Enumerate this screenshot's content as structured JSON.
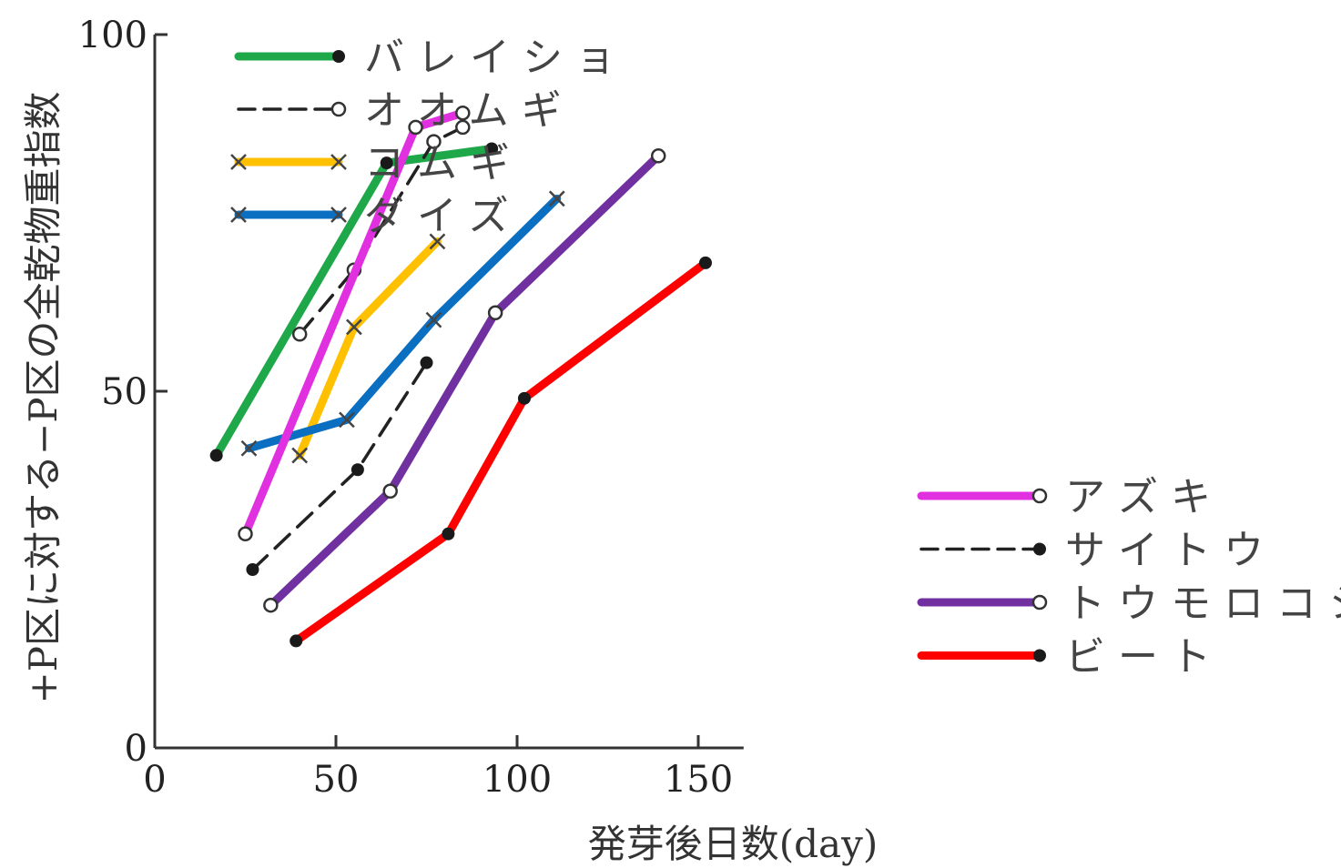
{
  "chart_data": {
    "type": "line",
    "xlabel": "発芽後日数(day)",
    "ylabel": "+P区に対する−P区の全乾物重指数",
    "xlim": [
      0,
      160
    ],
    "ylim": [
      0,
      100
    ],
    "x_ticks": [
      0,
      50,
      100,
      150
    ],
    "y_ticks": [
      0,
      50,
      100
    ],
    "grid": false,
    "legends": [
      {
        "placement": "top-left",
        "entries": [
          "バレイショ",
          "オオムギ",
          "コムギ",
          "ダイズ"
        ]
      },
      {
        "placement": "bottom-right",
        "entries": [
          "アズキ",
          "サイトウ",
          "トウモロコシ",
          "ビート"
        ]
      }
    ],
    "series": [
      {
        "name": "バレイショ",
        "color": "#1fa84a",
        "dash": "solid",
        "marker": "filled",
        "x": [
          17,
          64,
          93
        ],
        "y": [
          41,
          82,
          84
        ]
      },
      {
        "name": "オオムギ",
        "color": "#222222",
        "dash": "dashed",
        "marker": "open",
        "x": [
          40,
          55,
          77,
          85
        ],
        "y": [
          58,
          67,
          85,
          87
        ]
      },
      {
        "name": "コムギ",
        "color": "#ffc000",
        "dash": "solid",
        "marker": "cross",
        "x": [
          40,
          55,
          78
        ],
        "y": [
          41,
          59,
          71
        ]
      },
      {
        "name": "ダイズ",
        "color": "#0b6fc1",
        "dash": "solid",
        "marker": "cross",
        "x": [
          26,
          53,
          77,
          111
        ],
        "y": [
          42,
          46,
          60,
          77
        ]
      },
      {
        "name": "アズキ",
        "color": "#e030e0",
        "dash": "solid",
        "marker": "open",
        "x": [
          25,
          72,
          85
        ],
        "y": [
          30,
          87,
          89
        ]
      },
      {
        "name": "サイトウ",
        "color": "#222222",
        "dash": "dashed",
        "marker": "filled",
        "x": [
          27,
          56,
          75
        ],
        "y": [
          25,
          39,
          54
        ]
      },
      {
        "name": "トウモロコシ",
        "color": "#7030a0",
        "dash": "solid",
        "marker": "open",
        "x": [
          32,
          65,
          94,
          139
        ],
        "y": [
          20,
          36,
          61,
          83
        ]
      },
      {
        "name": "ビート",
        "color": "#ff0000",
        "dash": "solid",
        "marker": "filled",
        "x": [
          39,
          81,
          102,
          152
        ],
        "y": [
          15,
          30,
          49,
          68
        ]
      }
    ]
  }
}
